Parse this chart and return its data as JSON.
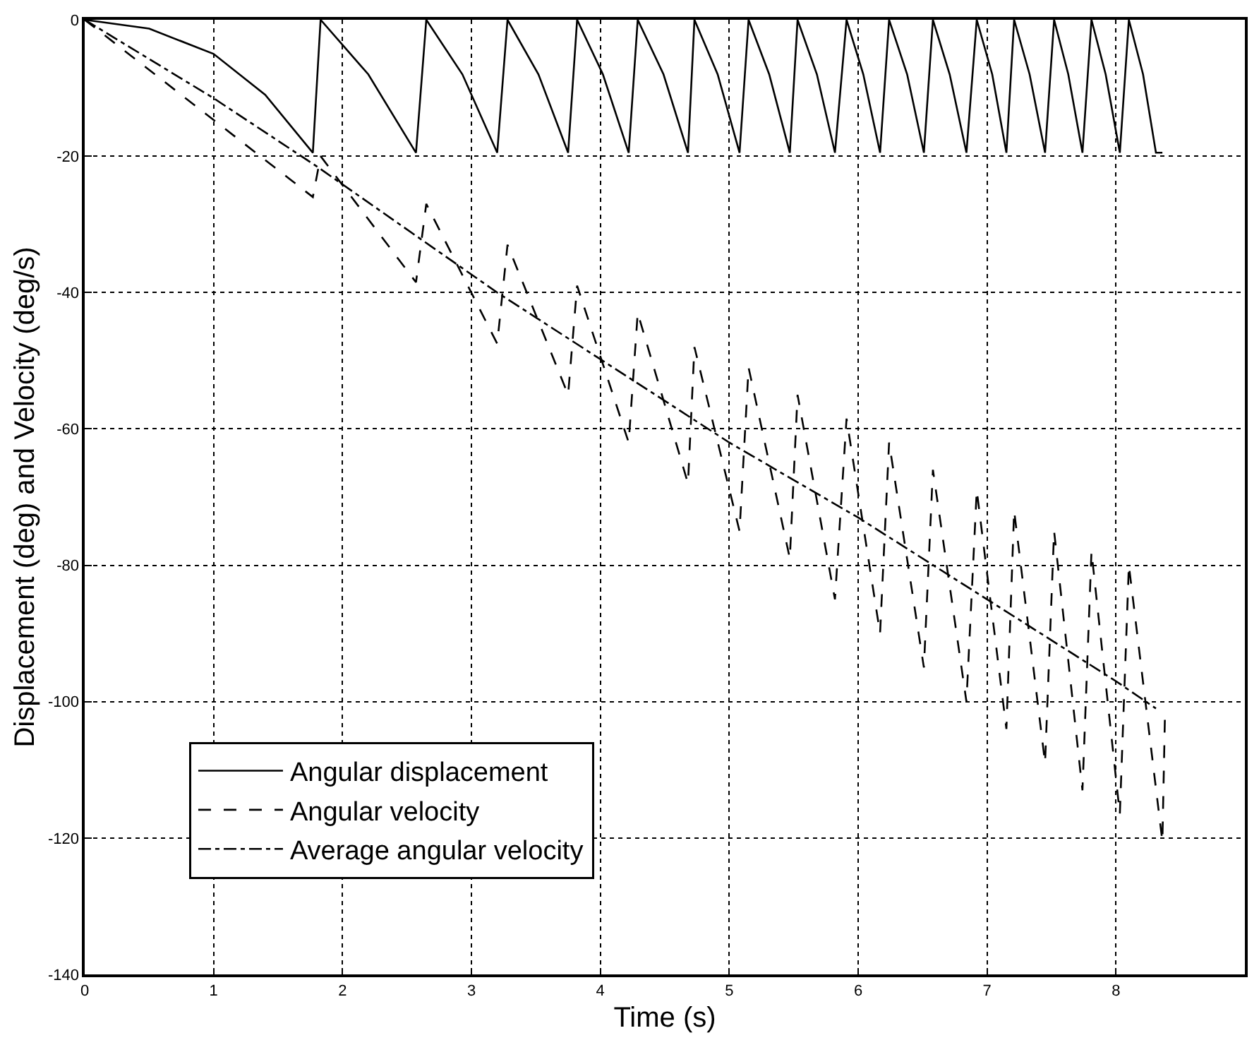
{
  "chart_data": {
    "type": "line",
    "xlabel": "Time (s)",
    "ylabel": "Displacement (deg) and Velocity (deg/s)",
    "xlim": [
      0,
      9
    ],
    "xticks": [
      0,
      1,
      2,
      3,
      4,
      5,
      6,
      7,
      8
    ],
    "ylim": [
      -140,
      0
    ],
    "yticks": [
      -140,
      -120,
      -100,
      -80,
      -60,
      -40,
      -20,
      0
    ],
    "grid": true,
    "legend": "bottom left",
    "marker": "none",
    "series": [
      {
        "name": "Angular displacement",
        "color": "#000000",
        "line_style": "solid",
        "x": [
          0,
          0.5,
          1,
          1.4,
          1.77,
          1.83,
          2.2,
          2.57,
          2.65,
          2.93,
          3.2,
          3.28,
          3.52,
          3.75,
          3.82,
          4.02,
          4.22,
          4.29,
          4.49,
          4.68,
          4.73,
          4.91,
          5.08,
          5.15,
          5.31,
          5.47,
          5.53,
          5.68,
          5.82,
          5.91,
          6.04,
          6.17,
          6.24,
          6.38,
          6.51,
          6.58,
          6.71,
          6.84,
          6.92,
          7.04,
          7.15,
          7.21,
          7.33,
          7.45,
          7.52,
          7.63,
          7.74,
          7.81,
          7.92,
          8.03,
          8.1,
          8.21,
          8.31,
          8.36
        ],
        "values": [
          0,
          -1.3,
          -5,
          -11,
          -19.5,
          0,
          -8,
          -19.5,
          0,
          -8,
          -19.5,
          0,
          -8,
          -19.5,
          0,
          -8,
          -19.5,
          0,
          -8,
          -19.5,
          0,
          -8,
          -19.5,
          0,
          -8,
          -19.5,
          0,
          -8,
          -19.5,
          0,
          -8,
          -19.5,
          0,
          -8,
          -19.5,
          0,
          -8,
          -19.5,
          0,
          -8,
          -19.5,
          0,
          -8,
          -19.5,
          0,
          -8,
          -19.5,
          0,
          -8,
          -19.5,
          0,
          -8,
          -19.5,
          -19.5
        ]
      },
      {
        "name": "Angular velocity",
        "color": "#000000",
        "line_style": "dashed",
        "x": [
          0,
          1.77,
          1.83,
          2.57,
          2.65,
          3.2,
          3.28,
          3.75,
          3.82,
          4.22,
          4.29,
          4.68,
          4.73,
          5.08,
          5.15,
          5.47,
          5.53,
          5.82,
          5.91,
          6.17,
          6.24,
          6.51,
          6.58,
          6.84,
          6.92,
          7.15,
          7.21,
          7.45,
          7.52,
          7.74,
          7.81,
          8.03,
          8.1,
          8.36,
          8.38
        ],
        "values": [
          0,
          -26,
          -20,
          -38.5,
          -27,
          -47.5,
          -33,
          -55,
          -39,
          -62,
          -43,
          -68,
          -48,
          -75,
          -51,
          -79,
          -55,
          -85,
          -58.5,
          -90,
          -62,
          -95,
          -66,
          -100,
          -69,
          -104,
          -72,
          -109,
          -75,
          -113,
          -78,
          -116.5,
          -80,
          -120.5,
          -102
        ]
      },
      {
        "name": "Average angular velocity",
        "color": "#000000",
        "line_style": "dashdot",
        "x": [
          0,
          1,
          1.8,
          3.2,
          5,
          6,
          7,
          8,
          8.31
        ],
        "values": [
          0,
          -11.5,
          -21.5,
          -40,
          -62,
          -73,
          -85,
          -97,
          -101
        ]
      }
    ]
  }
}
